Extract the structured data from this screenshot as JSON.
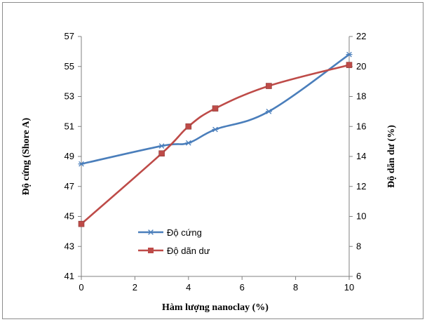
{
  "chart_data": {
    "type": "line",
    "xlabel": "Hàm lượng nanoclay (%)",
    "ylabel": "Độ cứng (Shore A)",
    "y2label": "Độ dãn dư (%)",
    "xlim": [
      0,
      10
    ],
    "ylim": [
      41,
      57
    ],
    "y2lim": [
      6,
      22
    ],
    "xticks": [
      "0",
      "2",
      "4",
      "6",
      "8",
      "10"
    ],
    "yticks": [
      "41",
      "43",
      "45",
      "47",
      "49",
      "51",
      "53",
      "55",
      "57"
    ],
    "y2ticks": [
      "6",
      "8",
      "10",
      "12",
      "14",
      "16",
      "18",
      "20",
      "22"
    ],
    "grid": false,
    "legend": "lower-left (inside plot)",
    "series": [
      {
        "name": "Độ cứng",
        "axis": "left",
        "marker": "star",
        "color": "#4a7ebb",
        "x": [
          0,
          3,
          4,
          5,
          7,
          10
        ],
        "values": [
          48.5,
          49.7,
          49.9,
          50.8,
          52.0,
          55.8
        ]
      },
      {
        "name": "Độ dãn dư",
        "axis": "right",
        "marker": "square",
        "color": "#be4b48",
        "x": [
          0,
          3,
          4,
          5,
          7,
          10
        ],
        "values": [
          9.5,
          14.2,
          16.0,
          17.2,
          18.7,
          20.1
        ]
      }
    ]
  }
}
